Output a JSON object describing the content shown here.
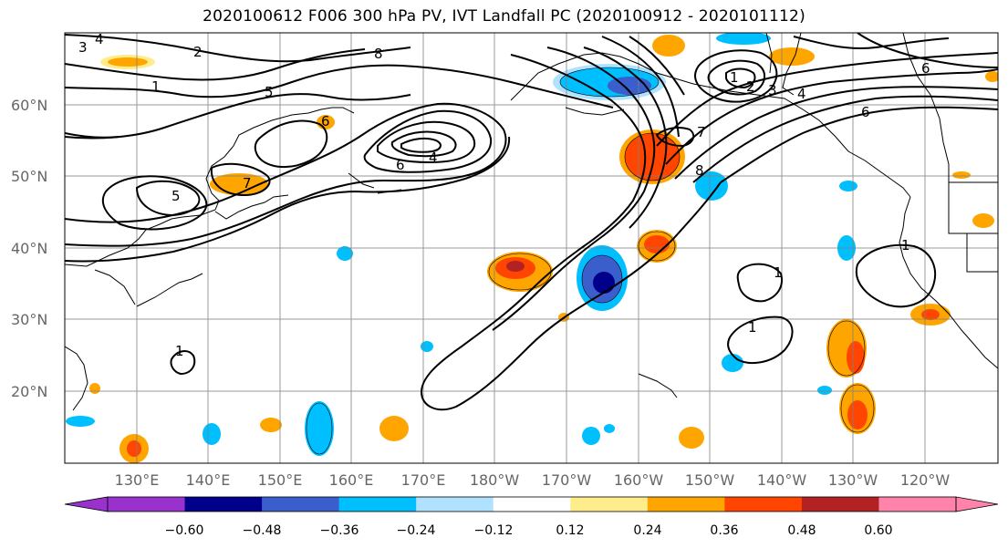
{
  "title": "2020100612 F006 300 hPa PV, IVT Landfall PC (2020100912 - 2020101112)",
  "map": {
    "lat_labels": [
      "60°N",
      "50°N",
      "40°N",
      "30°N",
      "20°N"
    ],
    "lon_labels": [
      "130°E",
      "140°E",
      "150°E",
      "160°E",
      "170°E",
      "180°W",
      "170°W",
      "160°W",
      "150°W",
      "140°W",
      "130°W",
      "120°W"
    ],
    "contour_labels": [
      "3",
      "4",
      "2",
      "1",
      "6",
      "7",
      "8",
      "5",
      "4",
      "6",
      "1",
      "2",
      "3",
      "4",
      "6",
      "7",
      "8",
      "1",
      "1",
      "1",
      "1",
      "5",
      "6"
    ]
  },
  "colorbar": {
    "colors": [
      "#9932cc",
      "#00008b",
      "#3a5fcd",
      "#00bfff",
      "#b0e2ff",
      "#ffffff",
      "#ffec8b",
      "#ffa500",
      "#ff4500",
      "#b22222",
      "#ff83aa"
    ],
    "ticks": [
      "−0.60",
      "−0.48",
      "−0.36",
      "−0.24",
      "−0.12",
      "0.12",
      "0.24",
      "0.36",
      "0.48",
      "0.60"
    ]
  }
}
